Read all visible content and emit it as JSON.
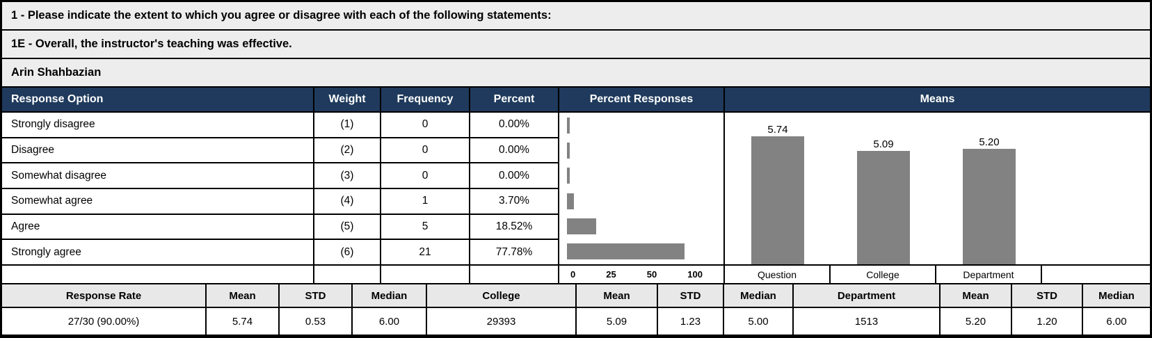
{
  "report": {
    "question_group": "1 - Please indicate the extent to which you agree or disagree with each of the following statements:",
    "question": "1E - Overall, the instructor's teaching was effective.",
    "instructor": "Arin Shahbazian"
  },
  "table": {
    "columns": [
      "Response Option",
      "Weight",
      "Frequency",
      "Percent",
      "Percent Responses",
      "Means"
    ],
    "rows": [
      {
        "option": "Strongly disagree",
        "weight": "(1)",
        "frequency": "0",
        "percent": "0.00%",
        "percent_value": 0
      },
      {
        "option": "Disagree",
        "weight": "(2)",
        "frequency": "0",
        "percent": "0.00%",
        "percent_value": 0
      },
      {
        "option": "Somewhat disagree",
        "weight": "(3)",
        "frequency": "0",
        "percent": "0.00%",
        "percent_value": 0
      },
      {
        "option": "Somewhat agree",
        "weight": "(4)",
        "frequency": "1",
        "percent": "3.70%",
        "percent_value": 3.7
      },
      {
        "option": "Agree",
        "weight": "(5)",
        "frequency": "5",
        "percent": "18.52%",
        "percent_value": 18.52
      },
      {
        "option": "Strongly agree",
        "weight": "(6)",
        "frequency": "21",
        "percent": "77.78%",
        "percent_value": 77.78
      }
    ]
  },
  "chart_data": [
    {
      "type": "bar",
      "orientation": "horizontal",
      "title": "Percent Responses",
      "categories": [
        "Strongly disagree",
        "Disagree",
        "Somewhat disagree",
        "Somewhat agree",
        "Agree",
        "Strongly agree"
      ],
      "values": [
        0,
        0,
        0,
        3.7,
        18.52,
        77.78
      ],
      "xlabel": "",
      "ylabel": "",
      "xlim": [
        0,
        100
      ],
      "tick_labels": [
        "0",
        "25",
        "50",
        "100"
      ],
      "grid": false,
      "legend": false,
      "bar_color": "#828282"
    },
    {
      "type": "bar",
      "orientation": "vertical",
      "title": "Means",
      "categories": [
        "Question",
        "College",
        "Department"
      ],
      "values": [
        5.74,
        5.09,
        5.2
      ],
      "data_labels": [
        "5.74",
        "5.09",
        "5.20"
      ],
      "xlabel": "",
      "ylabel": "",
      "ylim": [
        0,
        6
      ],
      "grid": false,
      "legend": false,
      "bar_color": "#828282"
    }
  ],
  "summary": {
    "headers": [
      "Response Rate",
      "Mean",
      "STD",
      "Median",
      "College",
      "Mean",
      "STD",
      "Median",
      "Department",
      "Mean",
      "STD",
      "Median"
    ],
    "values": [
      "27/30 (90.00%)",
      "5.74",
      "0.53",
      "6.00",
      "29393",
      "5.09",
      "1.23",
      "5.00",
      "1513",
      "5.20",
      "1.20",
      "6.00"
    ]
  },
  "colors": {
    "header_bg": "#1F3A5C",
    "header_text": "#FFFFFF",
    "bar": "#828282",
    "band_bg": "#EDEDED",
    "summary_header_bg": "#E8E8E8",
    "border": "#000000"
  }
}
